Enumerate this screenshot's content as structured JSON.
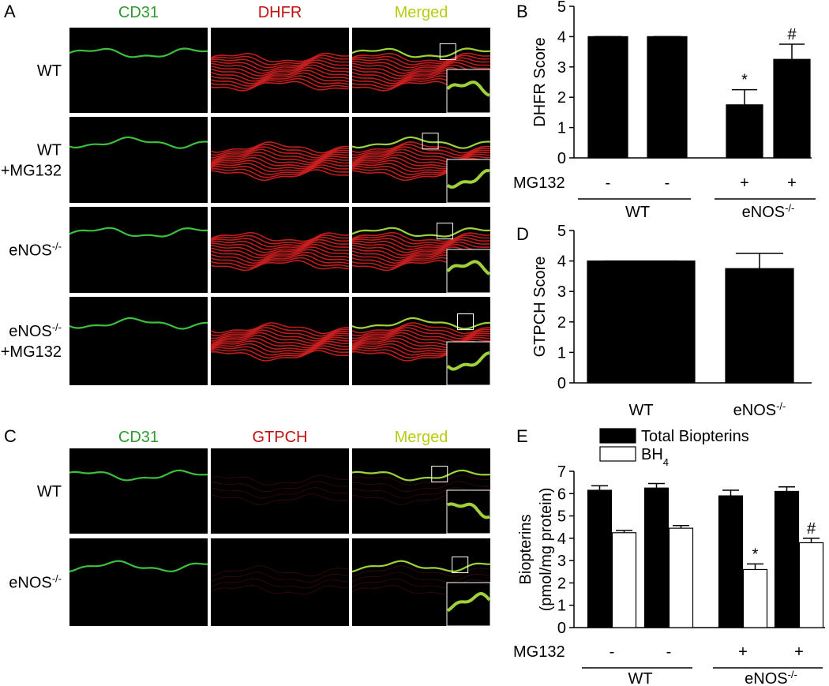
{
  "panels": [
    {
      "letter": "A",
      "columns": [
        "CD31",
        "DHFR",
        "Merged"
      ],
      "rows": [
        {
          "label": "WT"
        },
        {
          "label": "WT",
          "line2": "+MG132"
        },
        {
          "label": "eNOS",
          "sup": "-/-"
        },
        {
          "label": "eNOS",
          "sup": "-/-",
          "line2": "+MG132"
        }
      ]
    },
    {
      "letter": "C",
      "columns": [
        "CD31",
        "GTPCH",
        "Merged"
      ],
      "rows": [
        {
          "label": "WT"
        },
        {
          "label": "eNOS",
          "sup": "-/-"
        }
      ]
    }
  ],
  "chart_data": [
    {
      "type": "bar",
      "panel": "B",
      "ylabel": [
        "DHFR Score"
      ],
      "color": "#000000",
      "category_title": "MG132",
      "categories": [
        "-",
        "-",
        "+",
        "+"
      ],
      "groups": [
        {
          "label": "WT"
        },
        {
          "label": "eNOS",
          "sup": "-/-"
        }
      ],
      "values": [
        4,
        4,
        1.75,
        3.25
      ],
      "errors": [
        0,
        0,
        0.5,
        0.5
      ],
      "marks": [
        null,
        null,
        "*",
        "#"
      ],
      "ylim": [
        0,
        5
      ],
      "yticks": [
        0,
        1,
        2,
        3,
        4,
        5
      ]
    },
    {
      "type": "bar",
      "panel": "D",
      "ylabel": [
        "GTPCH Score"
      ],
      "color": "#000000",
      "categories": [
        {
          "label": "WT"
        },
        {
          "label": "eNOS",
          "sup": "-/-"
        }
      ],
      "values": [
        4,
        3.75
      ],
      "errors": [
        0,
        0.5
      ],
      "ylim": [
        0,
        5
      ],
      "yticks": [
        0,
        1,
        2,
        3,
        4,
        5
      ]
    },
    {
      "type": "bar",
      "panel": "E",
      "ylabel": [
        "Biopterins",
        "(pmol/mg protein)"
      ],
      "category_title": "MG132",
      "categories": [
        "-",
        "-",
        "+",
        "+"
      ],
      "groups": [
        {
          "label": "WT"
        },
        {
          "label": "eNOS",
          "sup": "-/-"
        }
      ],
      "series": [
        {
          "name": {
            "label": "Total Biopterins"
          },
          "color": "#000000",
          "values": [
            6.15,
            6.25,
            5.9,
            6.1
          ],
          "errors": [
            0.2,
            0.2,
            0.25,
            0.2
          ],
          "marks": [
            null,
            null,
            null,
            null
          ]
        },
        {
          "name": {
            "label": "BH",
            "sub": "4"
          },
          "color": "#ffffff",
          "values": [
            4.25,
            4.45,
            2.6,
            3.8
          ],
          "errors": [
            0.1,
            0.12,
            0.25,
            0.2
          ],
          "marks": [
            null,
            null,
            "*",
            "#"
          ]
        }
      ],
      "ylim": [
        0,
        7
      ],
      "yticks": [
        0,
        1,
        2,
        3,
        4,
        5,
        6,
        7
      ]
    }
  ]
}
